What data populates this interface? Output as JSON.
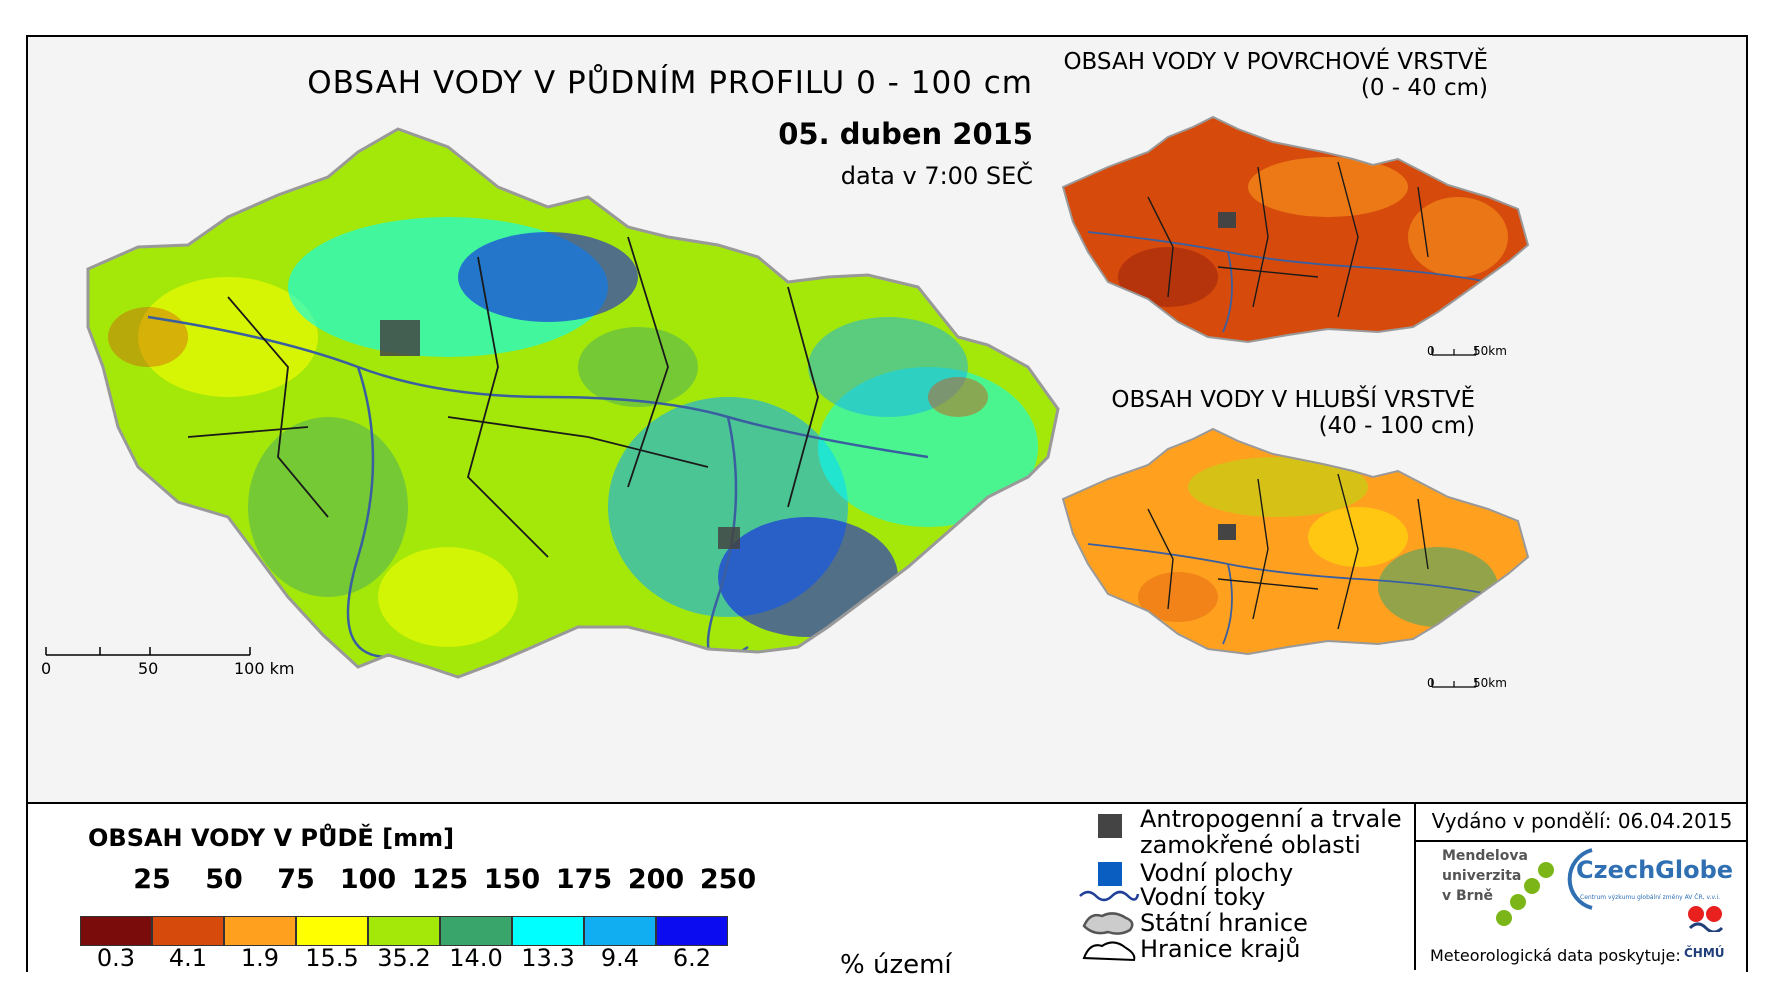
{
  "main_map": {
    "title": "OBSAH VODY V PŮDNÍM PROFILU 0 - 100 cm",
    "date": "05. duben 2015",
    "data_time": "data v 7:00 SEČ",
    "scale": {
      "zero": "0",
      "mid": "50",
      "end": "100 km"
    }
  },
  "inset_top": {
    "title_line1": "OBSAH VODY V POVRCHOVÉ VRSTVĚ",
    "title_line2": "(0 - 40 cm)",
    "scale": {
      "zero": "0",
      "end": "50km"
    }
  },
  "inset_bottom": {
    "title_line1": "OBSAH VODY V HLUBŠÍ VRSTVĚ",
    "title_line2": "(40 - 100 cm)",
    "scale": {
      "zero": "0",
      "end": "50km"
    }
  },
  "legend": {
    "title": "OBSAH VODY V PŮDĚ [mm]",
    "thresholds": [
      "25",
      "50",
      "75",
      "100",
      "125",
      "150",
      "175",
      "200",
      "250"
    ],
    "classes": [
      {
        "color": "#7b0c0c",
        "percent": "0.3"
      },
      {
        "color": "#d64b0c",
        "percent": "4.1"
      },
      {
        "color": "#ffa11f",
        "percent": "1.9"
      },
      {
        "color": "#ffff00",
        "percent": "15.5"
      },
      {
        "color": "#a4e80a",
        "percent": "35.2"
      },
      {
        "color": "#3aa56b",
        "percent": "14.0"
      },
      {
        "color": "#00ffff",
        "percent": "13.3"
      },
      {
        "color": "#12aef2",
        "percent": "9.4"
      },
      {
        "color": "#0c0cf0",
        "percent": "6.2"
      }
    ],
    "percent_unit": "% území"
  },
  "symbols": {
    "anthropogenic_line1": "Antropogenní a trvale",
    "anthropogenic_line2": "zamokřené oblasti",
    "water_bodies": "Vodní plochy",
    "rivers": "Vodní toky",
    "state_border": "Státní hranice",
    "region_border": "Hranice krajů"
  },
  "footer": {
    "issued": "Vydáno v pondělí: 06.04.2015",
    "mendel_line1": "Mendelova",
    "mendel_line2": "univerzita",
    "mendel_line3": "v Brně",
    "czechglobe": "CzechGlobe",
    "czechglobe_sub": "Centrum výzkumu globální změny AV ČR, v.v.i.",
    "meteo_provider": "Meteorologická data poskytuje:",
    "chmu": "ČHMÚ"
  },
  "colors": {
    "frame": "#000000",
    "rivers": "#3a5fa0",
    "borders": "#1a1a1a"
  }
}
